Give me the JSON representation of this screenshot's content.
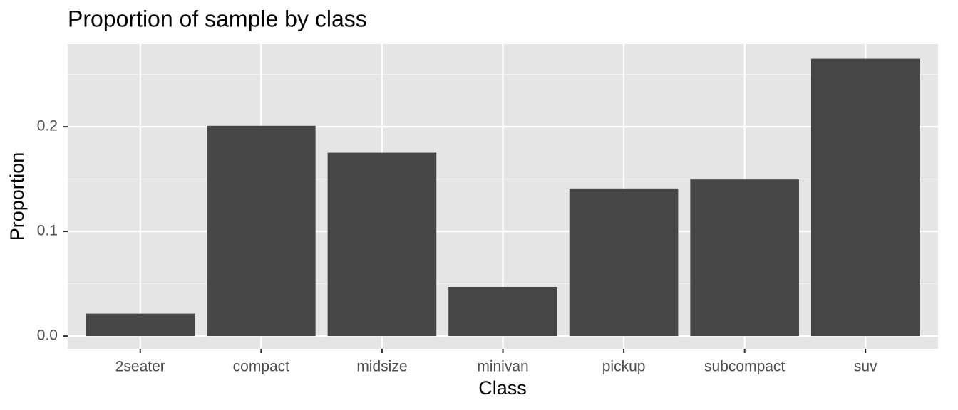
{
  "chart_data": {
    "type": "bar",
    "title": "Proportion of sample by class",
    "x_label": "Class",
    "y_label": "Proportion",
    "categories": [
      "2seater",
      "compact",
      "midsize",
      "minivan",
      "pickup",
      "subcompact",
      "suv"
    ],
    "values": [
      0.0214,
      0.2009,
      0.1752,
      0.047,
      0.141,
      0.1496,
      0.265
    ],
    "color": "#474747",
    "ylim": [
      -0.0122,
      0.279
    ],
    "yticks": [
      {
        "value": 0,
        "label": "0.0"
      },
      0.1,
      0.2
    ],
    "grid": true
  }
}
